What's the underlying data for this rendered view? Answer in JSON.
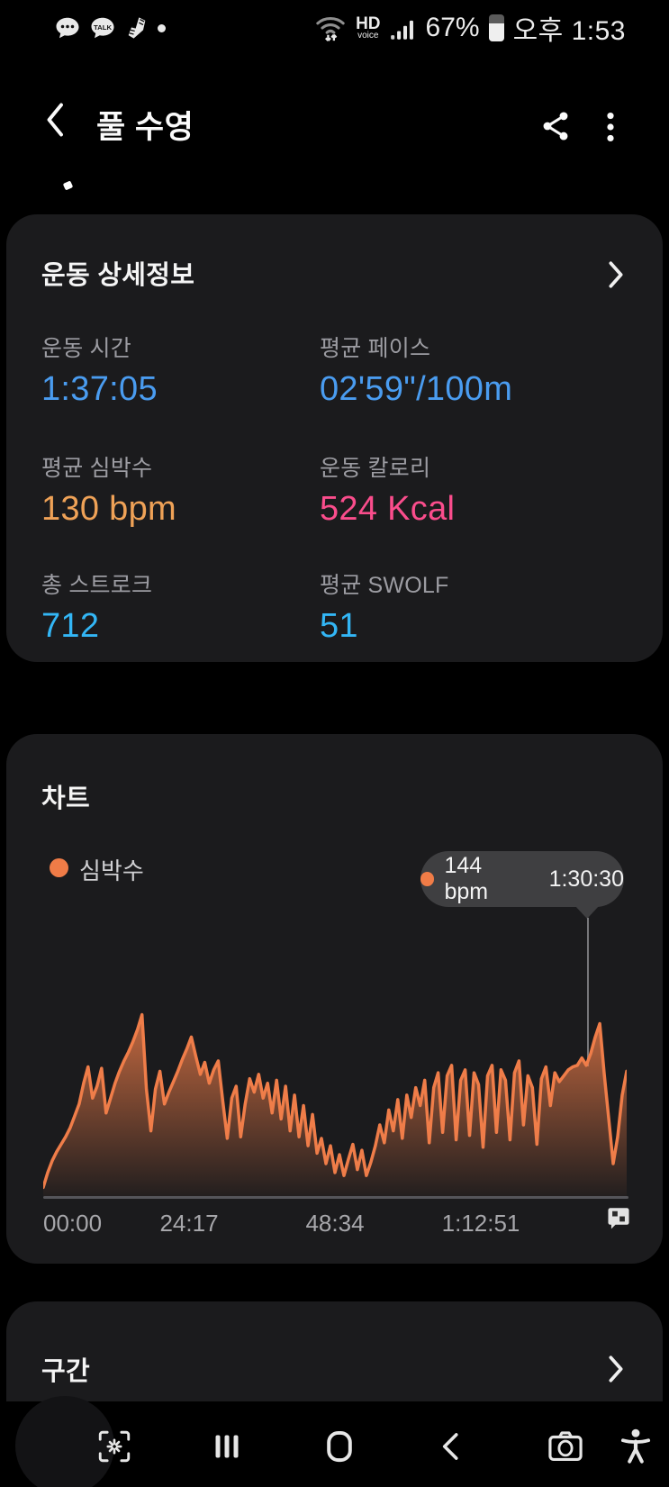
{
  "status_bar": {
    "time": "오후 1:53",
    "battery_percent": "67%",
    "hd_label": "HD",
    "voice_label": "voice",
    "left_icons": [
      "message-bubble-icon",
      "kakaotalk-icon",
      "running-shoe-icon",
      "notification-dot"
    ],
    "right_icons": [
      "wifi-icon",
      "hd-voice-indicator",
      "signal-strength-icon",
      "battery-icon"
    ]
  },
  "header": {
    "title": "풀 수영",
    "icons": [
      "back-icon",
      "share-icon",
      "more-icon"
    ]
  },
  "details_card": {
    "title": "운동 상세정보",
    "chevron": "›",
    "metrics": [
      {
        "label": "운동 시간",
        "value": "1:37:05",
        "color": "#4A9CF0"
      },
      {
        "label": "평균 페이스",
        "value": "02'59\"/100m",
        "color": "#4A9CF0"
      },
      {
        "label": "평균 심박수",
        "value": "130 bpm",
        "color": "#EFA257"
      },
      {
        "label": "운동 칼로리",
        "value": "524 Kcal",
        "color": "#FA4D8C"
      },
      {
        "label": "총 스트로크",
        "value": "712",
        "color": "#33B6F5"
      },
      {
        "label": "평균 SWOLF",
        "value": "51",
        "color": "#33B6F5"
      }
    ]
  },
  "chart_card": {
    "title": "차트",
    "legend_label": "심박수",
    "legend_color": "#F07C47",
    "tooltip": {
      "value": "144 bpm",
      "time": "1:30:30"
    },
    "x_labels": [
      "00:00",
      "24:17",
      "48:34",
      "1:12:51"
    ],
    "flag_icon": "finish-flag-icon"
  },
  "chart_data": {
    "type": "area",
    "title": "차트",
    "series": [
      {
        "name": "심박수",
        "unit": "bpm",
        "values": [
          62,
          72,
          80,
          86,
          91,
          96,
          102,
          110,
          118,
          132,
          143,
          122,
          130,
          142,
          112,
          122,
          132,
          140,
          147,
          153,
          160,
          168,
          178,
          128,
          100,
          128,
          140,
          118,
          126,
          133,
          140,
          148,
          155,
          163,
          150,
          138,
          146,
          132,
          141,
          147,
          120,
          95,
          122,
          130,
          96,
          118,
          135,
          126,
          138,
          122,
          132,
          112,
          134,
          108,
          130,
          100,
          124,
          96,
          117,
          90,
          111,
          85,
          95,
          78,
          90,
          72,
          84,
          70,
          81,
          91,
          74,
          87,
          70,
          79,
          90,
          104,
          92,
          114,
          100,
          121,
          95,
          124,
          109,
          129,
          117,
          134,
          92,
          129,
          139,
          99,
          137,
          144,
          94,
          134,
          141,
          97,
          139,
          131,
          89,
          137,
          144,
          99,
          141,
          134,
          94,
          139,
          147,
          104,
          137,
          129,
          91,
          135,
          143,
          117,
          139,
          133,
          137,
          141,
          143,
          144,
          149,
          144,
          152,
          163,
          172,
          138,
          108,
          78,
          96,
          124,
          140
        ]
      }
    ],
    "x_tick_labels": [
      "00:00",
      "24:17",
      "48:34",
      "1:12:51"
    ],
    "y_domain": [
      55,
      182
    ],
    "highlight": {
      "index": 121,
      "value": 144,
      "time": "1:30:30",
      "x_fraction": 0.9336
    },
    "grid": false,
    "legend_position": "top-left",
    "colors": {
      "line": "#EF7D49",
      "fill_top": "rgba(239,125,73,0.8)",
      "fill_bottom": "rgba(239,125,73,0.03)"
    }
  },
  "laps_card": {
    "title": "구간",
    "chevron": "›"
  },
  "nav_bar": {
    "icons": [
      "screen-capture-icon",
      "recents-icon",
      "home-icon",
      "back-icon",
      "camera-icon",
      "accessibility-icon"
    ]
  },
  "colors": {
    "background": "#000000",
    "card": "#1B1B1D",
    "label_gray": "#9C9CA2",
    "blue": "#4A9CF0",
    "orange": "#EFA257",
    "pink": "#FA4D8C",
    "cyan": "#33B6F5",
    "chart_line": "#EF7D49",
    "tooltip_bg": "#3F3F41"
  }
}
